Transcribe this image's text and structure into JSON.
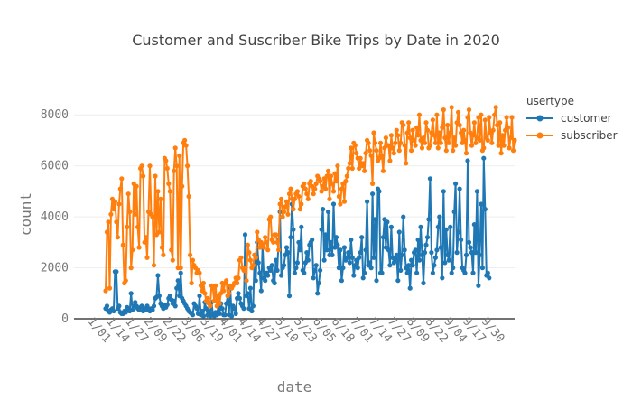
{
  "chart_data": {
    "type": "line",
    "title": "Customer and Suscriber Bike Trips by Date in 2020",
    "xlabel": "date",
    "ylabel": "count",
    "ylim": [
      0,
      9000
    ],
    "y_ticks": [
      0,
      2000,
      4000,
      6000,
      8000
    ],
    "y_tick_labels": [
      "0",
      "2000",
      "4000",
      "6000",
      "8000"
    ],
    "x_tick_labels": [
      "1/01",
      "1/14",
      "1/27",
      "2/09",
      "2/22",
      "3/06",
      "3/19",
      "4/01",
      "4/14",
      "4/27",
      "5/10",
      "5/23",
      "6/05",
      "6/18",
      "7/01",
      "7/14",
      "7/27",
      "8/09",
      "8/22",
      "9/04",
      "9/17",
      "9/30"
    ],
    "x_range": [
      "1/01",
      "9/30"
    ],
    "legend": {
      "title": "usertype",
      "placement": "top-right"
    },
    "grid": true,
    "series": [
      {
        "name": "customer",
        "color": "#1f77b4",
        "values": [
          400,
          500,
          300,
          250,
          350,
          400,
          300,
          1850,
          1850,
          400,
          500,
          250,
          200,
          200,
          300,
          250,
          450,
          350,
          300,
          1000,
          350,
          500,
          650,
          500,
          400,
          350,
          450,
          500,
          300,
          400,
          350,
          500,
          400,
          300,
          400,
          350,
          500,
          800,
          850,
          1700,
          900,
          600,
          500,
          400,
          550,
          450,
          550,
          800,
          900,
          750,
          600,
          700,
          500,
          1200,
          1500,
          900,
          1800,
          800,
          700,
          600,
          500,
          400,
          300,
          250,
          200,
          150,
          600,
          500,
          400,
          200,
          900,
          150,
          300,
          100,
          650,
          400,
          150,
          300,
          100,
          650,
          200,
          100,
          250,
          150,
          500,
          200,
          600,
          400,
          150,
          150,
          600,
          900,
          150,
          1200,
          100,
          500,
          400,
          200,
          800,
          1000,
          800,
          600,
          500,
          400,
          3300,
          900,
          1000,
          400,
          1200,
          300,
          500,
          2500,
          1500,
          3000,
          2200,
          1800,
          1100,
          2900,
          1600,
          1500,
          1800,
          1700,
          2000,
          1900,
          2100,
          1500,
          1400,
          2300,
          1900,
          3100,
          4200,
          1700,
          2000,
          2100,
          2500,
          2800,
          2600,
          900,
          3200,
          4500,
          3500,
          1800,
          2000,
          2200,
          3000,
          2700,
          3600,
          1900,
          1800,
          2200,
          2600,
          2300,
          2900,
          3000,
          3100,
          1600,
          1900,
          2100,
          1000,
          1400,
          1900,
          3500,
          4300,
          2300,
          3300,
          2700,
          4200,
          2500,
          3000,
          2500,
          4500,
          2800,
          3200,
          2900,
          2000,
          2700,
          1500,
          2000,
          2800,
          2300,
          2400,
          2600,
          2200,
          3100,
          2400,
          1700,
          2100,
          2300,
          2000,
          2400,
          2600,
          3200,
          1600,
          1800,
          2700,
          4600,
          2100,
          2200,
          2000,
          4900,
          2400,
          3900,
          1500,
          5100,
          5000,
          1800,
          1800,
          3200,
          3900,
          2800,
          3800,
          2700,
          2100,
          3600,
          2400,
          2200,
          2300,
          2500,
          1500,
          3400,
          1900,
          2500,
          4000,
          2700,
          2000,
          1800,
          2100,
          1200,
          2300,
          2100,
          2600,
          2700,
          1800,
          3100,
          2300,
          3600,
          2500,
          1400,
          2600,
          2900,
          3200,
          3900,
          5500,
          2600,
          1800,
          2100,
          2400,
          2700,
          3600,
          4000,
          2800,
          1600,
          5000,
          2200,
          3500,
          2500,
          2300,
          3600,
          1800,
          2000,
          4200,
          5300,
          2600,
          3400,
          5100,
          3100,
          2000,
          1900,
          1800,
          2500,
          6200,
          3000,
          2800,
          2600,
          1800,
          3700,
          2600,
          5000,
          1300,
          2500,
          4500,
          2000,
          6300,
          4300,
          1700,
          1800,
          1600
        ]
      },
      {
        "name": "subscriber",
        "color": "#ff7f0e",
        "values": [
          1100,
          3400,
          3800,
          1200,
          4100,
          4700,
          4300,
          4600,
          3800,
          3200,
          4500,
          5100,
          5500,
          2900,
          1400,
          1500,
          3600,
          4900,
          4200,
          2000,
          2700,
          5300,
          4100,
          5200,
          3600,
          2800,
          5900,
          6000,
          5600,
          3000,
          3200,
          2400,
          4200,
          6000,
          4100,
          4000,
          2100,
          5600,
          3300,
          5000,
          3400,
          4700,
          2800,
          2500,
          6300,
          6200,
          5900,
          5300,
          5000,
          2700,
          2300,
          5800,
          6700,
          6000,
          2000,
          6400,
          2000,
          5200,
          6900,
          7000,
          6800,
          6000,
          4800,
          2500,
          1400,
          2300,
          2100,
          2000,
          1800,
          1900,
          1800,
          1300,
          1100,
          1400,
          1000,
          700,
          800,
          600,
          500,
          1300,
          1200,
          700,
          1300,
          500,
          900,
          600,
          1000,
          1400,
          1100,
          1400,
          1500,
          900,
          1000,
          1300,
          1200,
          1300,
          1400,
          1600,
          1400,
          1600,
          2300,
          2400,
          2000,
          1900,
          2000,
          1500,
          2900,
          2600,
          2300,
          2000,
          2100,
          2500,
          2400,
          3400,
          3100,
          2800,
          3000,
          2900,
          2800,
          3200,
          3000,
          2700,
          3900,
          4000,
          3100,
          3000,
          3300,
          3300,
          3000,
          2700,
          4500,
          4700,
          4000,
          4200,
          4400,
          4600,
          4100,
          4900,
          5100,
          4700,
          4300,
          4700,
          4900,
          5000,
          4800,
          4300,
          4500,
          5200,
          5300,
          5100,
          4900,
          4700,
          5300,
          5400,
          5200,
          4900,
          5100,
          5300,
          5600,
          5500,
          5400,
          5000,
          5200,
          5500,
          5100,
          5600,
          5800,
          4700,
          5600,
          5300,
          5000,
          5700,
          5400,
          6000,
          4800,
          4500,
          5100,
          5300,
          4600,
          5400,
          5600,
          5900,
          6100,
          6700,
          5900,
          6900,
          6800,
          6500,
          6300,
          5900,
          6300,
          6000,
          6100,
          5800,
          6500,
          7000,
          6900,
          6600,
          6400,
          5300,
          7300,
          6900,
          6600,
          6200,
          6300,
          6900,
          6400,
          5800,
          6700,
          7100,
          6800,
          6800,
          6200,
          7200,
          6700,
          6500,
          6900,
          7400,
          7200,
          6600,
          6900,
          7700,
          7600,
          6800,
          6100,
          7300,
          7700,
          7100,
          6600,
          7400,
          7000,
          6800,
          7500,
          7200,
          8000,
          7000,
          6700,
          7100,
          6900,
          7700,
          7400,
          6700,
          6800,
          7300,
          7800,
          7200,
          6900,
          8000,
          6700,
          7300,
          6900,
          7500,
          8200,
          7100,
          6600,
          7600,
          6900,
          7300,
          8300,
          6600,
          7100,
          6800,
          7700,
          8100,
          7600,
          7300,
          6900,
          7400,
          7000,
          6500,
          7900,
          8200,
          7300,
          6800,
          7200,
          7700,
          6900,
          7100,
          7900,
          7000,
          8000,
          6600,
          6700,
          7800,
          7100,
          7000,
          7900,
          7300,
          6900,
          7400,
          8000,
          8300,
          7600,
          6800,
          7700,
          6500,
          7200,
          6800,
          7400,
          7900,
          7500,
          6700,
          7100,
          7900,
          6600,
          7000
        ]
      }
    ]
  }
}
